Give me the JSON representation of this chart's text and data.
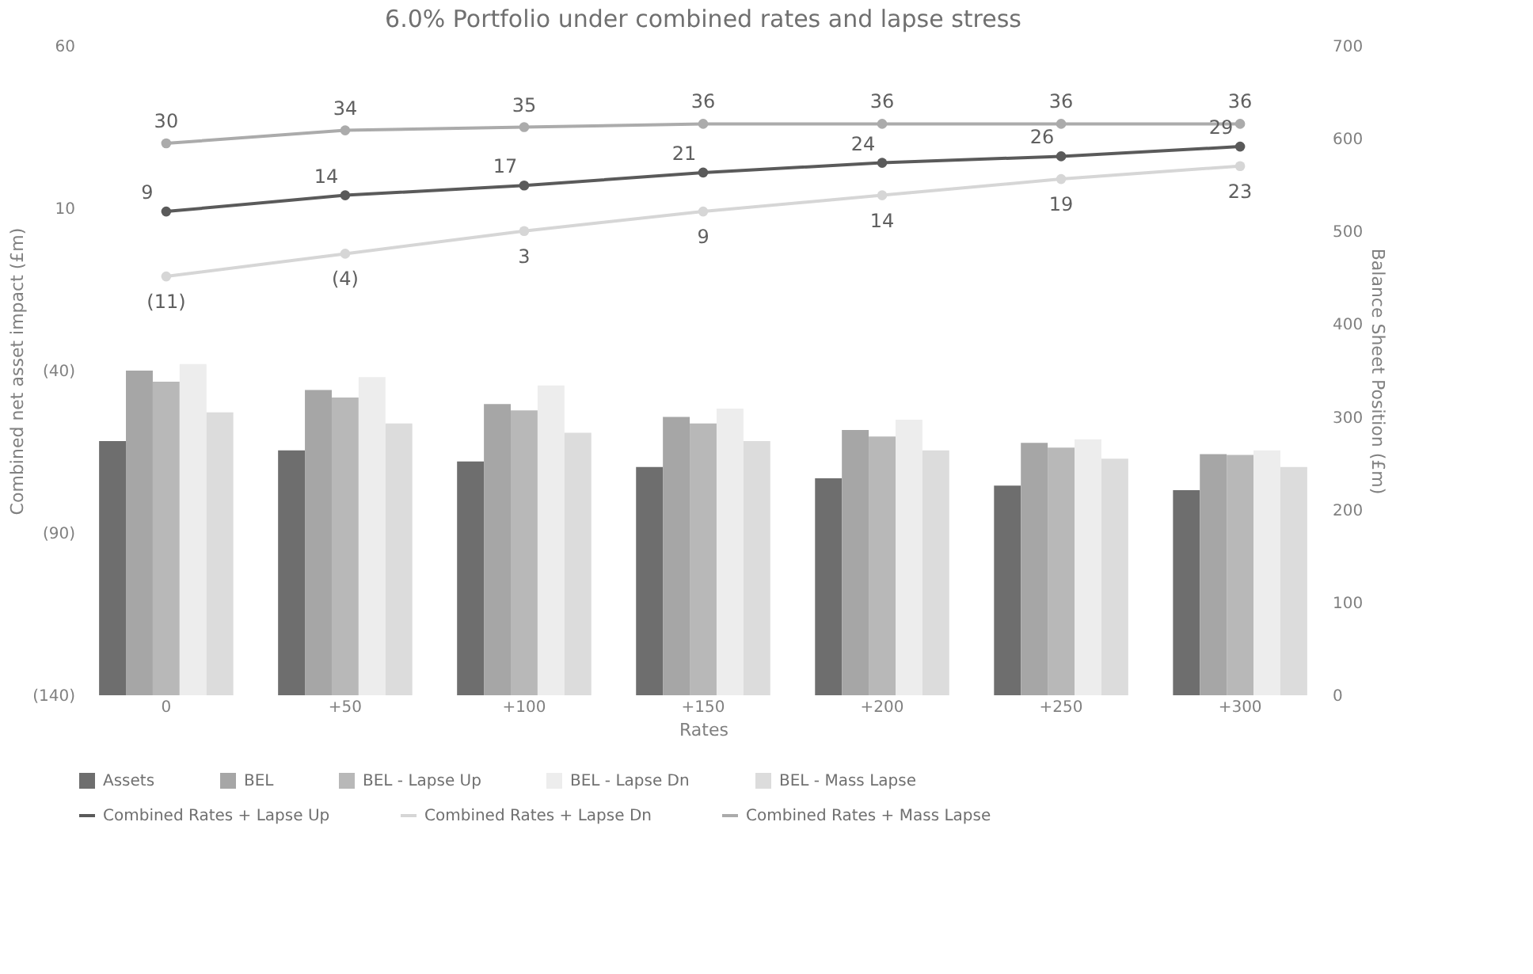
{
  "chart_data": {
    "type": "bar",
    "title": "6.0% Portfolio under combined rates and lapse stress",
    "xlabel": "Rates",
    "ylabel": "Combined net asset impact (£m)",
    "y2label": "Balance Sheet Position (£m)",
    "categories": [
      "0",
      "+50",
      "+100",
      "+150",
      "+200",
      "+250",
      "+300"
    ],
    "series": [
      {
        "name": "Assets",
        "axis": "y2",
        "color": "#6e6e6e",
        "values": [
          274,
          264,
          252,
          246,
          234,
          226,
          221
        ]
      },
      {
        "name": "BEL",
        "axis": "y2",
        "color": "#a6a6a6",
        "values": [
          350,
          329,
          314,
          300,
          286,
          272,
          260
        ]
      },
      {
        "name": "BEL - Lapse Up",
        "axis": "y2",
        "color": "#b8b8b8",
        "values": [
          338,
          321,
          307,
          293,
          279,
          267,
          259
        ]
      },
      {
        "name": "BEL - Lapse Dn",
        "axis": "y2",
        "color": "#ededed",
        "values": [
          357,
          343,
          334,
          309,
          297,
          276,
          264
        ]
      },
      {
        "name": "BEL - Mass Lapse",
        "axis": "y2",
        "color": "#dcdcdc",
        "values": [
          305,
          293,
          283,
          274,
          264,
          255,
          246
        ]
      },
      {
        "name": "Combined Rates + Lapse Up",
        "type": "line",
        "color": "#5a5a5a",
        "values": [
          9,
          14,
          17,
          21,
          24,
          26,
          29
        ],
        "value_labels": [
          "9",
          "14",
          "17",
          "21",
          "24",
          "26",
          "29"
        ]
      },
      {
        "name": "Combined Rates + Lapse Dn",
        "type": "line",
        "color": "#d6d6d6",
        "values": [
          -11,
          -4,
          3,
          9,
          14,
          19,
          23
        ],
        "value_labels": [
          "(11)",
          "(4)",
          "3",
          "9",
          "14",
          "19",
          "23"
        ]
      },
      {
        "name": "Combined Rates + Mass Lapse",
        "type": "line",
        "color": "#ababab",
        "values": [
          30,
          34,
          35,
          36,
          36,
          36,
          36
        ],
        "value_labels": [
          "30",
          "34",
          "35",
          "36",
          "36",
          "36",
          "36"
        ]
      }
    ],
    "ylim": [
      -140,
      60
    ],
    "yticks": [
      {
        "value": -140,
        "label": "(140)"
      },
      {
        "value": -90,
        "label": "(90)"
      },
      {
        "value": -40,
        "label": "(40)"
      },
      10,
      60
    ],
    "y2lim": [
      0,
      700
    ],
    "y2ticks": [
      0,
      100,
      200,
      300,
      400,
      500,
      600,
      700
    ],
    "marker": "circle",
    "grid": false,
    "legend": "bottom"
  }
}
